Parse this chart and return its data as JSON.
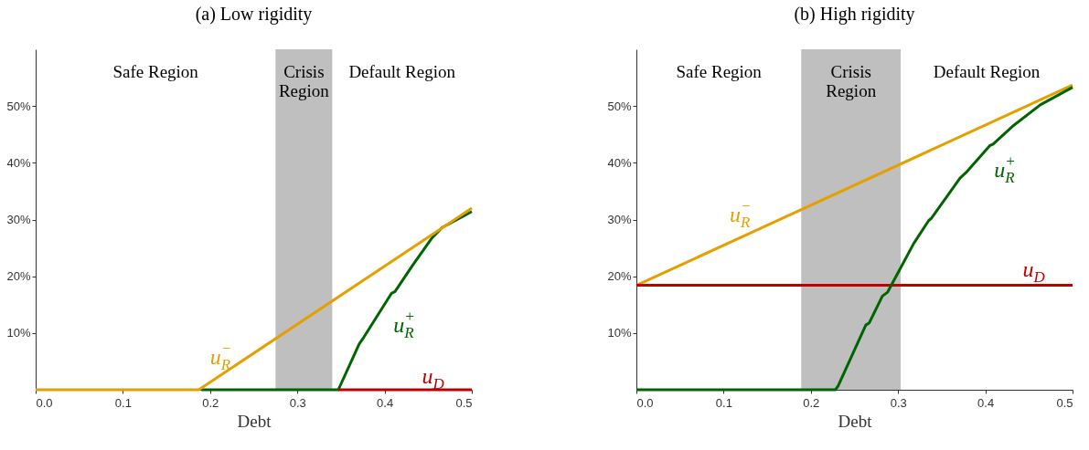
{
  "chart_data": [
    {
      "type": "line",
      "title": "(a) Low rigidity",
      "xlabel": "Debt",
      "xlim": [
        0,
        0.5
      ],
      "xticks": [
        {
          "value": 0,
          "label": "0.0"
        },
        0.1,
        0.2,
        0.3,
        0.4,
        0.5
      ],
      "ylim": [
        0,
        60
      ],
      "yticks": [
        {
          "value": 10,
          "label": "10%"
        },
        {
          "value": 20,
          "label": "20%"
        },
        {
          "value": 30,
          "label": "30%"
        },
        {
          "value": 40,
          "label": "40%"
        },
        {
          "value": 50,
          "label": "50%"
        }
      ],
      "grid": false,
      "series": [
        {
          "name": "u$_{R}$$^{+}$",
          "color": "#006400",
          "x": [
            0.19,
            0.347,
            0.371,
            0.376,
            0.408,
            0.412,
            0.432,
            0.454,
            0.466,
            0.5
          ],
          "values": [
            0,
            0,
            8.1,
            9.2,
            17,
            17.3,
            21.9,
            26.7,
            28.6,
            31.4
          ]
        },
        {
          "name": "u$_{D}$",
          "color": "#c00000",
          "x": [
            0.347,
            0.5
          ],
          "values": [
            0,
            0
          ]
        },
        {
          "name": "u$_{R}$$^{−}$",
          "color": "#e69f00",
          "x": [
            0,
            0.187,
            0.5
          ],
          "values": [
            0,
            0,
            32
          ]
        }
      ],
      "bands": [
        {
          "axis": "x",
          "from": 0.275,
          "to": 0.34,
          "label": "Crisis Region",
          "color": "#bfbfbf"
        }
      ],
      "annotations": [
        "Safe Region",
        "Default Region"
      ]
    },
    {
      "type": "line",
      "title": "(b) High rigidity",
      "xlabel": "Debt",
      "xlim": [
        0,
        0.5
      ],
      "xticks": [
        {
          "value": 0,
          "label": "0.0"
        },
        0.1,
        0.2,
        0.3,
        0.4,
        0.5
      ],
      "ylim": [
        0,
        60
      ],
      "yticks": [
        {
          "value": 10,
          "label": "10%"
        },
        {
          "value": 20,
          "label": "20%"
        },
        {
          "value": 30,
          "label": "30%"
        },
        {
          "value": 40,
          "label": "40%"
        },
        {
          "value": 50,
          "label": "50%"
        }
      ],
      "grid": false,
      "series": [
        {
          "name": "u$_{R}$$^{−}$",
          "color": "#e69f00",
          "x": [
            0,
            0.5
          ],
          "values": [
            18.4,
            53.7
          ]
        },
        {
          "name": "u$_{D}$",
          "color": "#c00000",
          "x": [
            0,
            0.5
          ],
          "values": [
            18.4,
            18.4
          ]
        },
        {
          "name": "u$_{R}$$^{+}$",
          "color": "#006400",
          "x": [
            0,
            0.228,
            0.231,
            0.263,
            0.267,
            0.282,
            0.288,
            0.318,
            0.335,
            0.338,
            0.371,
            0.378,
            0.405,
            0.409,
            0.431,
            0.463,
            0.5
          ],
          "values": [
            0,
            0,
            0.6,
            11.4,
            11.8,
            16.5,
            17.2,
            25.8,
            29.8,
            30.2,
            37.3,
            38.3,
            43,
            43.3,
            46.4,
            50.2,
            53.3
          ]
        }
      ],
      "bands": [
        {
          "axis": "x",
          "from": 0.189,
          "to": 0.303,
          "label": "Crisis Region",
          "color": "#bfbfbf"
        }
      ],
      "annotations": [
        "Safe Region",
        "Default Region"
      ]
    }
  ]
}
